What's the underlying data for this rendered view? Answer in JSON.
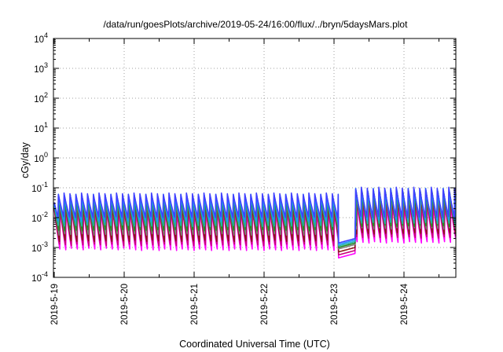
{
  "chart_data": {
    "type": "line",
    "title": "/data/run/goesPlots/archive/2019-05-24/16:00/flux/../bryn/5daysMars.plot",
    "xlabel": "Coordinated Universal Time (UTC)",
    "ylabel": "cGy/day",
    "yscale": "log",
    "ylim": [
      0.0001,
      10000
    ],
    "xlim": [
      "2019-05-19",
      "2019-05-24 17:00"
    ],
    "grid": true,
    "legend": "none",
    "x_ticks": [
      "2019-5-19",
      "2019-5-20",
      "2019-5-21",
      "2019-5-22",
      "2019-5-23",
      "2019-5-24"
    ],
    "y_ticks": [
      {
        "base": "10",
        "exp": "-4"
      },
      {
        "base": "10",
        "exp": "-3"
      },
      {
        "base": "10",
        "exp": "-2"
      },
      {
        "base": "10",
        "exp": "-1"
      },
      {
        "base": "10",
        "exp": "0"
      },
      {
        "base": "10",
        "exp": "1"
      },
      {
        "base": "10",
        "exp": "2"
      },
      {
        "base": "10",
        "exp": "3"
      },
      {
        "base": "10",
        "exp": "4"
      }
    ],
    "sawtooth_period_hours": 2,
    "series": [
      {
        "color": "#ff00ff",
        "values_log10": {
          "peak": -1.65,
          "trough": -3.1,
          "event_trough": -3.35,
          "post_peak": -1.5,
          "post_trough": -2.85
        }
      },
      {
        "color": "#c8007a",
        "values_log10": {
          "peak": -1.55,
          "trough": -2.95,
          "event_trough": -3.25,
          "post_peak": -1.35,
          "post_trough": -2.7
        }
      },
      {
        "color": "#8b1a1a",
        "values_log10": {
          "peak": -1.45,
          "trough": -2.8,
          "event_trough": -3.15,
          "post_peak": -1.25,
          "post_trough": -2.55
        }
      },
      {
        "color": "#7f7f7f",
        "values_log10": {
          "peak": -1.35,
          "trough": -2.6,
          "event_trough": -3.05,
          "post_peak": -1.15,
          "post_trough": -2.4
        }
      },
      {
        "color": "#228b22",
        "values_log10": {
          "peak": -1.3,
          "trough": -2.45,
          "event_trough": -3.0,
          "post_peak": -1.1,
          "post_trough": -2.3
        }
      },
      {
        "color": "#20b2aa",
        "values_log10": {
          "peak": -1.25,
          "trough": -2.3,
          "event_trough": -2.95,
          "post_peak": -1.05,
          "post_trough": -2.2
        }
      },
      {
        "color": "#1e90ff",
        "values_log10": {
          "peak": -1.2,
          "trough": -2.15,
          "event_trough": -2.9,
          "post_peak": -1.0,
          "post_trough": -2.1
        }
      },
      {
        "color": "#4040ff",
        "values_log10": {
          "peak": -1.15,
          "trough": -2.0,
          "event_trough": -2.85,
          "post_peak": -0.95,
          "post_trough": -2.0
        }
      }
    ]
  }
}
